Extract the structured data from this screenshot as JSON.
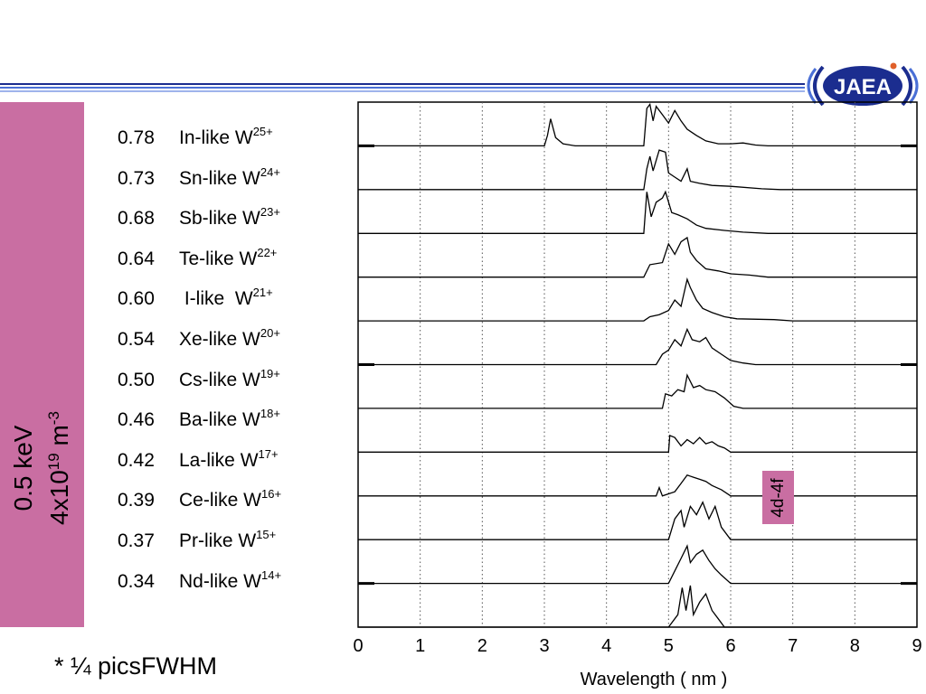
{
  "colors": {
    "accent": "#c96ea2",
    "header_lines": [
      "#1b2d8f",
      "#4a6fd6",
      "#9fb4ec"
    ]
  },
  "logo": {
    "text": "JAEA"
  },
  "sidebar": {
    "line1": "0.5 keV",
    "line2_base": "4x10",
    "line2_exp": "19",
    "line2_unit": " m",
    "line2_unit_exp": "-3"
  },
  "ion_labels": [
    {
      "value": "0.78",
      "name": "In-like W",
      "charge": "25+"
    },
    {
      "value": "0.73",
      "name": "Sn-like W",
      "charge": "24+"
    },
    {
      "value": "0.68",
      "name": "Sb-like W",
      "charge": "23+"
    },
    {
      "value": "0.64",
      "name": "Te-like W",
      "charge": "22+"
    },
    {
      "value": "0.60",
      "name": " I-like  W",
      "charge": "21+"
    },
    {
      "value": "0.54",
      "name": "Xe-like W",
      "charge": "20+"
    },
    {
      "value": "0.50",
      "name": "Cs-like W",
      "charge": "19+"
    },
    {
      "value": "0.46",
      "name": "Ba-like W",
      "charge": "18+"
    },
    {
      "value": "0.42",
      "name": "La-like W",
      "charge": "17+"
    },
    {
      "value": "0.39",
      "name": "Ce-like W",
      "charge": "16+"
    },
    {
      "value": "0.37",
      "name": "Pr-like W",
      "charge": "15+"
    },
    {
      "value": "0.34",
      "name": "Nd-like W",
      "charge": "14+"
    }
  ],
  "annotation": "4d-4f",
  "footnote": "* ¼ picsFWHM",
  "chart_data": {
    "type": "line",
    "xlabel": "Wavelength ( nm )",
    "ylabel": "",
    "xlim": [
      0,
      9
    ],
    "x_ticks": [
      0,
      1,
      2,
      3,
      4,
      5,
      6,
      7,
      8,
      9
    ],
    "grid": "vertical dotted",
    "series": [
      {
        "name": "In-like W25+",
        "points": [
          [
            3.0,
            0
          ],
          [
            3.05,
            0.25
          ],
          [
            3.1,
            0.65
          ],
          [
            3.18,
            0.2
          ],
          [
            3.3,
            0.05
          ],
          [
            3.5,
            0
          ],
          [
            4.6,
            0
          ],
          [
            4.65,
            0.9
          ],
          [
            4.7,
            1.0
          ],
          [
            4.75,
            0.6
          ],
          [
            4.8,
            0.95
          ],
          [
            4.9,
            0.75
          ],
          [
            5.0,
            0.55
          ],
          [
            5.1,
            0.85
          ],
          [
            5.2,
            0.6
          ],
          [
            5.3,
            0.4
          ],
          [
            5.45,
            0.25
          ],
          [
            5.6,
            0.12
          ],
          [
            5.8,
            0.05
          ],
          [
            6.0,
            0.05
          ],
          [
            6.2,
            0.07
          ],
          [
            6.4,
            0.02
          ],
          [
            6.6,
            0
          ],
          [
            9,
            0
          ]
        ]
      },
      {
        "name": "Sn-like W24+",
        "points": [
          [
            4.6,
            0
          ],
          [
            4.65,
            0.5
          ],
          [
            4.7,
            0.8
          ],
          [
            4.75,
            0.45
          ],
          [
            4.85,
            0.95
          ],
          [
            4.95,
            0.9
          ],
          [
            5.0,
            0.4
          ],
          [
            5.1,
            0.3
          ],
          [
            5.2,
            0.2
          ],
          [
            5.3,
            0.5
          ],
          [
            5.35,
            0.2
          ],
          [
            5.5,
            0.15
          ],
          [
            5.7,
            0.1
          ],
          [
            6.0,
            0.08
          ],
          [
            6.5,
            0.02
          ],
          [
            6.8,
            0
          ],
          [
            9,
            0
          ]
        ]
      },
      {
        "name": "Sb-like W23+",
        "points": [
          [
            4.6,
            0
          ],
          [
            4.65,
            1.0
          ],
          [
            4.72,
            0.4
          ],
          [
            4.8,
            0.75
          ],
          [
            4.9,
            0.85
          ],
          [
            4.95,
            1.0
          ],
          [
            5.05,
            0.5
          ],
          [
            5.15,
            0.45
          ],
          [
            5.3,
            0.35
          ],
          [
            5.45,
            0.2
          ],
          [
            5.6,
            0.12
          ],
          [
            5.9,
            0.07
          ],
          [
            6.2,
            0.03
          ],
          [
            6.6,
            0
          ],
          [
            9,
            0
          ]
        ]
      },
      {
        "name": "Te-like W22+",
        "points": [
          [
            4.6,
            0
          ],
          [
            4.7,
            0.3
          ],
          [
            4.9,
            0.35
          ],
          [
            5.0,
            0.8
          ],
          [
            5.1,
            0.55
          ],
          [
            5.2,
            0.85
          ],
          [
            5.3,
            0.95
          ],
          [
            5.35,
            0.6
          ],
          [
            5.45,
            0.4
          ],
          [
            5.6,
            0.2
          ],
          [
            5.8,
            0.15
          ],
          [
            6.0,
            0.08
          ],
          [
            6.3,
            0.05
          ],
          [
            6.6,
            0
          ],
          [
            9,
            0
          ]
        ]
      },
      {
        "name": "I-like W21+",
        "points": [
          [
            4.6,
            0
          ],
          [
            4.7,
            0.1
          ],
          [
            4.85,
            0.15
          ],
          [
            5.0,
            0.25
          ],
          [
            5.1,
            0.5
          ],
          [
            5.2,
            0.35
          ],
          [
            5.3,
            1.0
          ],
          [
            5.35,
            0.8
          ],
          [
            5.45,
            0.5
          ],
          [
            5.55,
            0.3
          ],
          [
            5.7,
            0.2
          ],
          [
            5.9,
            0.1
          ],
          [
            6.1,
            0.05
          ],
          [
            6.7,
            0.03
          ],
          [
            7.0,
            0
          ],
          [
            9,
            0
          ]
        ]
      },
      {
        "name": "Xe-like W20+",
        "points": [
          [
            4.8,
            0
          ],
          [
            4.9,
            0.25
          ],
          [
            5.0,
            0.35
          ],
          [
            5.1,
            0.6
          ],
          [
            5.2,
            0.45
          ],
          [
            5.3,
            0.85
          ],
          [
            5.38,
            0.6
          ],
          [
            5.5,
            0.55
          ],
          [
            5.6,
            0.65
          ],
          [
            5.7,
            0.4
          ],
          [
            5.85,
            0.25
          ],
          [
            6.0,
            0.1
          ],
          [
            6.2,
            0.04
          ],
          [
            6.4,
            0
          ],
          [
            9,
            0
          ]
        ]
      },
      {
        "name": "Cs-like W19+",
        "points": [
          [
            4.9,
            0
          ],
          [
            4.95,
            0.35
          ],
          [
            5.05,
            0.3
          ],
          [
            5.15,
            0.45
          ],
          [
            5.25,
            0.4
          ],
          [
            5.3,
            0.8
          ],
          [
            5.4,
            0.5
          ],
          [
            5.5,
            0.55
          ],
          [
            5.6,
            0.45
          ],
          [
            5.75,
            0.4
          ],
          [
            5.9,
            0.25
          ],
          [
            6.05,
            0.05
          ],
          [
            6.2,
            0
          ],
          [
            9,
            0
          ]
        ]
      },
      {
        "name": "Ba-like W18+",
        "points": [
          [
            5.0,
            0
          ],
          [
            5.02,
            0.4
          ],
          [
            5.1,
            0.35
          ],
          [
            5.2,
            0.15
          ],
          [
            5.3,
            0.3
          ],
          [
            5.4,
            0.2
          ],
          [
            5.5,
            0.35
          ],
          [
            5.6,
            0.2
          ],
          [
            5.7,
            0.25
          ],
          [
            5.8,
            0.15
          ],
          [
            5.9,
            0.1
          ],
          [
            6.0,
            0
          ],
          [
            9,
            0
          ]
        ]
      },
      {
        "name": "La-like W17+",
        "points": [
          [
            4.8,
            0
          ],
          [
            4.85,
            0.2
          ],
          [
            4.9,
            0
          ],
          [
            5.1,
            0.1
          ],
          [
            5.2,
            0.3
          ],
          [
            5.3,
            0.5
          ],
          [
            5.4,
            0.45
          ],
          [
            5.5,
            0.4
          ],
          [
            5.6,
            0.35
          ],
          [
            5.7,
            0.25
          ],
          [
            5.85,
            0.15
          ],
          [
            6.0,
            0
          ],
          [
            9,
            0
          ]
        ]
      },
      {
        "name": "Ce-like W16+",
        "points": [
          [
            5.0,
            0
          ],
          [
            5.1,
            0.5
          ],
          [
            5.2,
            0.7
          ],
          [
            5.25,
            0.3
          ],
          [
            5.35,
            0.8
          ],
          [
            5.45,
            0.6
          ],
          [
            5.55,
            0.9
          ],
          [
            5.65,
            0.5
          ],
          [
            5.75,
            0.8
          ],
          [
            5.85,
            0.3
          ],
          [
            6.0,
            0
          ],
          [
            9,
            0
          ]
        ]
      },
      {
        "name": "Pr-like W15+",
        "points": [
          [
            5.0,
            0
          ],
          [
            5.1,
            0.3
          ],
          [
            5.2,
            0.6
          ],
          [
            5.3,
            0.9
          ],
          [
            5.35,
            0.5
          ],
          [
            5.45,
            0.7
          ],
          [
            5.55,
            0.8
          ],
          [
            5.65,
            0.55
          ],
          [
            5.75,
            0.35
          ],
          [
            5.85,
            0.2
          ],
          [
            6.0,
            0
          ],
          [
            9,
            0
          ]
        ]
      },
      {
        "name": "Nd-like W14+",
        "points": [
          [
            5.0,
            0
          ],
          [
            5.15,
            0.3
          ],
          [
            5.22,
            0.95
          ],
          [
            5.28,
            0.4
          ],
          [
            5.35,
            1.0
          ],
          [
            5.4,
            0.3
          ],
          [
            5.5,
            0.6
          ],
          [
            5.6,
            0.8
          ],
          [
            5.7,
            0.4
          ],
          [
            5.8,
            0.2
          ],
          [
            5.9,
            0
          ],
          [
            9,
            0
          ]
        ]
      }
    ]
  }
}
